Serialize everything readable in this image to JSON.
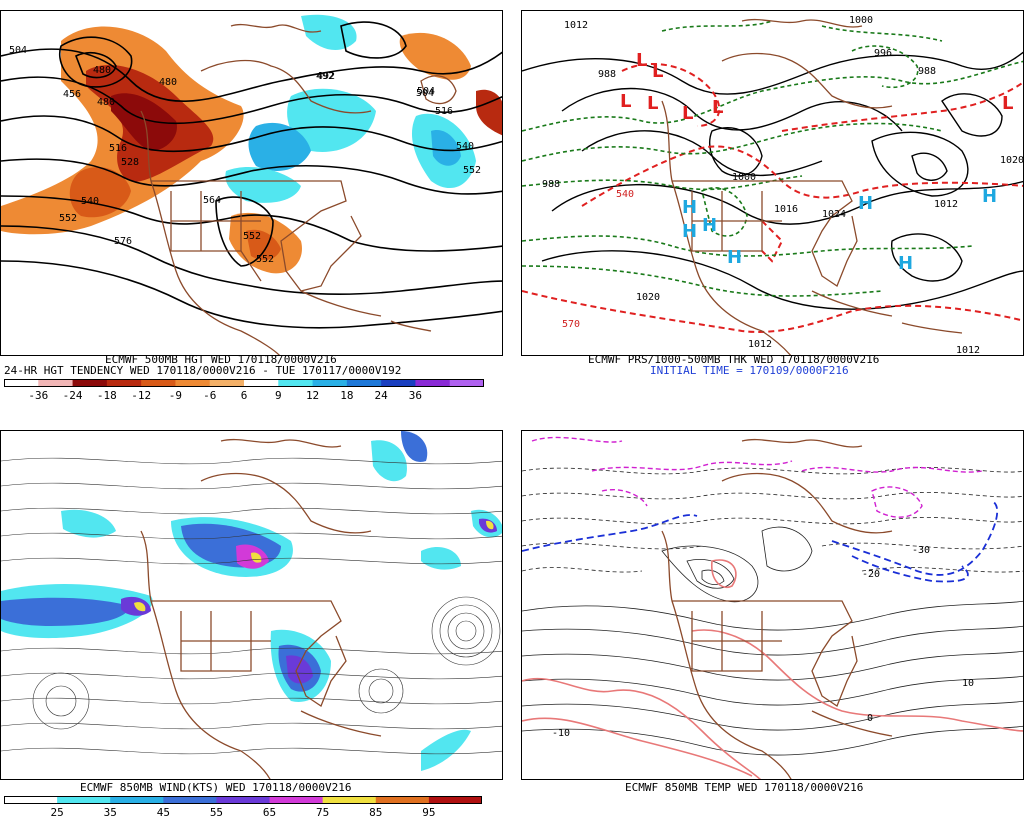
{
  "panels": {
    "top_left": {
      "caption_line1": "ECMWF 500MB HGT WED 170118/0000V216",
      "caption_line2": "24-HR HGT TENDENCY WED 170118/0000V216 - TUE 170117/0000V192",
      "colorbar_labels": [
        "-36",
        "-24",
        "-18",
        "-12",
        "-9",
        "-6",
        "6",
        "9",
        "12",
        "18",
        "24",
        "36"
      ],
      "colorbar_colors": [
        "#ffffff",
        "#f2b6b6",
        "#8c0a0a",
        "#b82a10",
        "#d85a18",
        "#ee8a34",
        "#f3b068",
        "#ffffff",
        "#52e6f0",
        "#2ab0e6",
        "#1e78d8",
        "#1a3fc0",
        "#8a2ad6",
        "#b062f0"
      ],
      "contour_labels": [
        "504",
        "480",
        "480",
        "456",
        "480",
        "492",
        "504",
        "516",
        "528",
        "540",
        "552",
        "576",
        "504",
        "516",
        "540",
        "552",
        "564",
        "552",
        "552",
        "492"
      ]
    },
    "top_right": {
      "caption_line1": "ECMWF PRS/1000-500MB THK WED 170118/0000V216",
      "caption_line2": "INITIAL TIME = 170109/0000F216",
      "contour_labels": [
        "1012",
        "988",
        "988",
        "1020",
        "1020",
        "1012",
        "1016",
        "1024",
        "996",
        "988",
        "1000",
        "1000",
        "570",
        "540",
        "1012",
        "1012"
      ],
      "low_symbol": "L",
      "high_symbol": "H"
    },
    "bottom_left": {
      "caption_line1": "ECMWF 850MB WIND(KTS) WED 170118/0000V216",
      "colorbar_labels": [
        "25",
        "35",
        "45",
        "55",
        "65",
        "75",
        "85",
        "95"
      ],
      "colorbar_colors": [
        "#ffffff",
        "#52e6f0",
        "#2ab0e6",
        "#3b6fd8",
        "#6a3ad8",
        "#d23ad8",
        "#f0e040",
        "#e07020",
        "#b01010"
      ]
    },
    "bottom_right": {
      "caption_line1": "ECMWF 850MB TEMP WED 170118/0000V216",
      "contour_labels": [
        "-30",
        "-20",
        "-10",
        "0",
        "10"
      ]
    }
  },
  "colors": {
    "coast": "#8b4a2b",
    "hgt_contour": "#000000",
    "thickness_warm": "#e02020",
    "thickness_cold": "#1a7a1a",
    "temp_freezing": "#1a2fd6",
    "temp_warm": "#e87878",
    "temp_cold": "#d020d0"
  }
}
